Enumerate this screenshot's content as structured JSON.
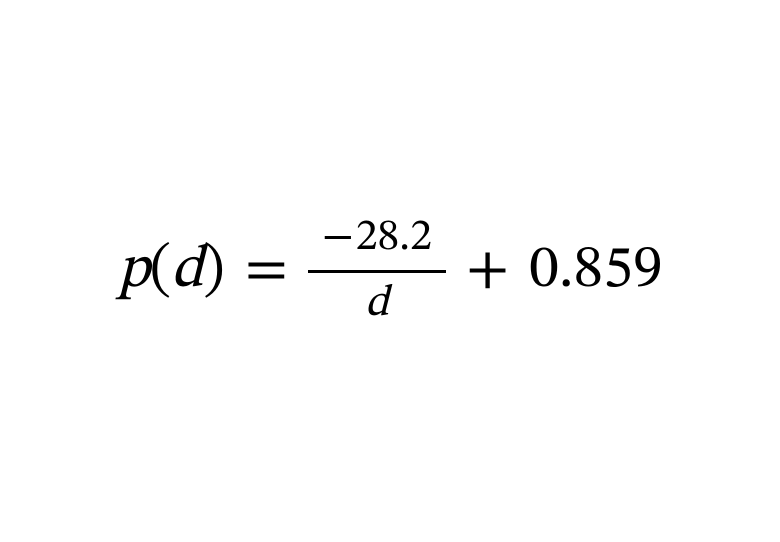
{
  "equation": {
    "function_name": "p",
    "open_paren": "(",
    "argument": "d",
    "close_paren": ")",
    "equals": "=",
    "numerator_sign": "−",
    "numerator_value": "28.2",
    "denominator": "d",
    "operator": "+",
    "constant": "0.859"
  },
  "style": {
    "background_color": "#ffffff",
    "text_color": "#000000",
    "main_fontsize": 60,
    "fraction_fontsize": 44,
    "fraction_line_color": "#000000",
    "fraction_line_width": 138,
    "fraction_line_height": 3,
    "font_family": "Cambria Math, STIX Two Math, Times New Roman, serif"
  }
}
